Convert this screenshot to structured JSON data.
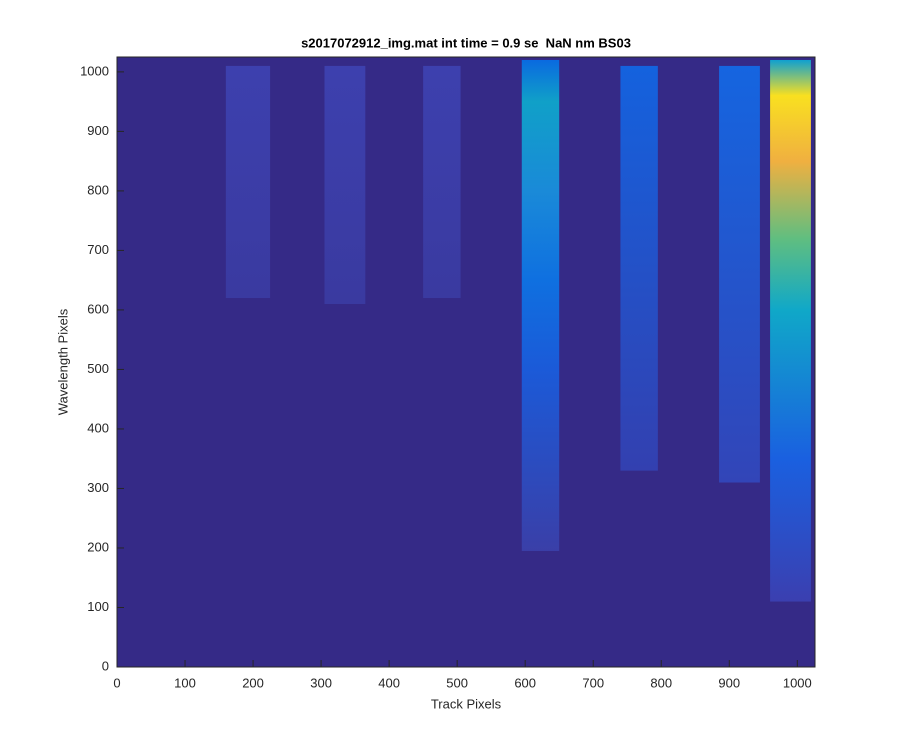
{
  "chart_data": {
    "type": "heatmap",
    "title": "s2017072912_img.mat int time = 0.9 se  NaN nm BS03",
    "x_label": "Track Pixels",
    "y_label": "Wavelength Pixels",
    "xlim": [
      0,
      1026
    ],
    "ylim": [
      0,
      1025
    ],
    "xticks": [
      0,
      100,
      200,
      300,
      400,
      500,
      600,
      700,
      800,
      900,
      1000
    ],
    "yticks": [
      0,
      100,
      200,
      300,
      400,
      500,
      600,
      700,
      800,
      900,
      1000
    ],
    "background": "#352a87",
    "stripes": [
      {
        "x": [
          160,
          225
        ],
        "y": [
          620,
          1010
        ],
        "stops": [
          {
            "y": 620,
            "color": "#3a3aa0"
          },
          {
            "y": 1010,
            "color": "#3d40ae"
          }
        ]
      },
      {
        "x": [
          305,
          365
        ],
        "y": [
          610,
          1010
        ],
        "stops": [
          {
            "y": 610,
            "color": "#3a3aa0"
          },
          {
            "y": 1010,
            "color": "#3d40ae"
          }
        ]
      },
      {
        "x": [
          450,
          505
        ],
        "y": [
          620,
          1010
        ],
        "stops": [
          {
            "y": 620,
            "color": "#3a3aa0"
          },
          {
            "y": 1010,
            "color": "#3d40ae"
          }
        ]
      },
      {
        "x": [
          595,
          650
        ],
        "y": [
          195,
          1020
        ],
        "stops": [
          {
            "y": 195,
            "color": "#3a3fa8"
          },
          {
            "y": 500,
            "color": "#1b5ad8"
          },
          {
            "y": 650,
            "color": "#0f70e0"
          },
          {
            "y": 800,
            "color": "#1a8ad8"
          },
          {
            "y": 950,
            "color": "#10a0c8"
          },
          {
            "y": 1020,
            "color": "#0a6ae0"
          }
        ]
      },
      {
        "x": [
          740,
          795
        ],
        "y": [
          330,
          1010
        ],
        "stops": [
          {
            "y": 330,
            "color": "#3340b0"
          },
          {
            "y": 1010,
            "color": "#1462de"
          }
        ]
      },
      {
        "x": [
          885,
          945
        ],
        "y": [
          310,
          1010
        ],
        "stops": [
          {
            "y": 310,
            "color": "#3245b8"
          },
          {
            "y": 1010,
            "color": "#1565e0"
          }
        ]
      },
      {
        "x": [
          960,
          1020
        ],
        "y": [
          110,
          1020
        ],
        "stops": [
          {
            "y": 110,
            "color": "#3b3fb0"
          },
          {
            "y": 350,
            "color": "#1a60e0"
          },
          {
            "y": 600,
            "color": "#10a8c8"
          },
          {
            "y": 720,
            "color": "#60be80"
          },
          {
            "y": 850,
            "color": "#f0b040"
          },
          {
            "y": 960,
            "color": "#f9e020"
          },
          {
            "y": 1020,
            "color": "#10a0d0"
          }
        ]
      }
    ]
  }
}
